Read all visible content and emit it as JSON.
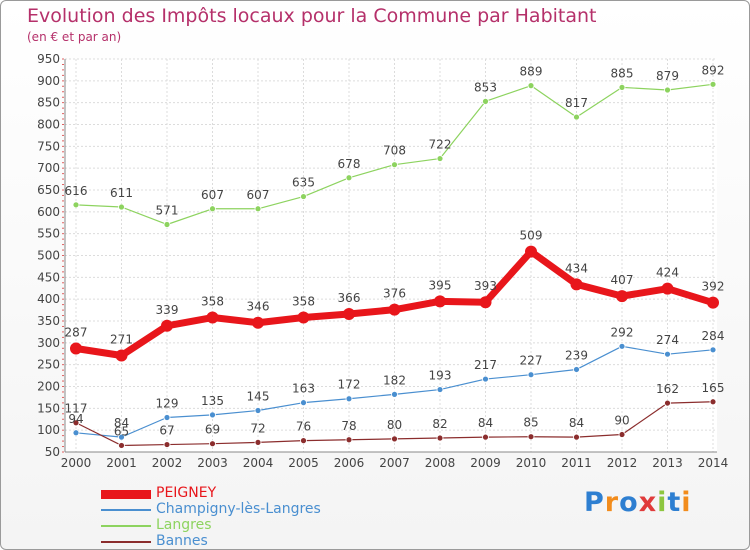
{
  "title": "Evolution des Impôts locaux pour la Commune par Habitant",
  "subtitle": "(en € et par an)",
  "logo": {
    "text": "Proxiti",
    "colors": [
      "#2e7fd1",
      "#f28c1c",
      "#2e7fd1",
      "#e03b3b",
      "#8dc63f",
      "#2e7fd1",
      "#f28c1c"
    ]
  },
  "chart_data": {
    "type": "line",
    "x": [
      "2000",
      "2001",
      "2002",
      "2003",
      "2004",
      "2005",
      "2006",
      "2007",
      "2008",
      "2009",
      "2010",
      "2011",
      "2012",
      "2013",
      "2014"
    ],
    "ylim": [
      50,
      950
    ],
    "yticks": [
      50,
      100,
      150,
      200,
      250,
      300,
      350,
      400,
      450,
      500,
      550,
      600,
      650,
      700,
      750,
      800,
      850,
      900,
      950
    ],
    "grid": true,
    "legend_position": "bottom-left",
    "series": [
      {
        "name": "PEIGNEY",
        "color": "#e8161b",
        "values": [
          287,
          271,
          339,
          358,
          346,
          358,
          366,
          376,
          395,
          393,
          509,
          434,
          407,
          424,
          392
        ]
      },
      {
        "name": "Champigny-lès-Langres",
        "color": "#4a8fd0",
        "values": [
          94,
          84,
          129,
          135,
          145,
          163,
          172,
          182,
          193,
          217,
          227,
          239,
          292,
          274,
          284
        ]
      },
      {
        "name": "Langres",
        "color": "#8dd35f",
        "values": [
          616,
          611,
          571,
          607,
          607,
          635,
          678,
          708,
          722,
          853,
          889,
          817,
          885,
          879,
          892
        ]
      },
      {
        "name": "Bannes",
        "color": "#8b2d2d",
        "values": [
          117,
          65,
          67,
          69,
          72,
          76,
          78,
          80,
          82,
          84,
          85,
          84,
          90,
          162,
          165
        ]
      }
    ],
    "data_labels": {
      "PEIGNEY": [
        "287",
        "271",
        "339",
        "358",
        "346",
        "358",
        "366",
        "376",
        "395",
        "393",
        "509",
        "434",
        "407",
        "424",
        "392"
      ],
      "Champigny-lès-Langres": [
        "94",
        "84",
        "129",
        "135",
        "145",
        "163",
        "172",
        "182",
        "193",
        "217",
        "227",
        "239",
        "292",
        "274",
        "284"
      ],
      "Langres": [
        "616",
        "611",
        "571",
        "607",
        "607",
        "635",
        "678",
        "708",
        "722",
        "853",
        "889",
        "817",
        "885",
        "879",
        "892"
      ],
      "Bannes": [
        "117",
        "65",
        "67",
        "69",
        "72",
        "76",
        "78",
        "80",
        "82",
        "84",
        "85",
        "84",
        "90",
        "162",
        "165"
      ]
    }
  }
}
